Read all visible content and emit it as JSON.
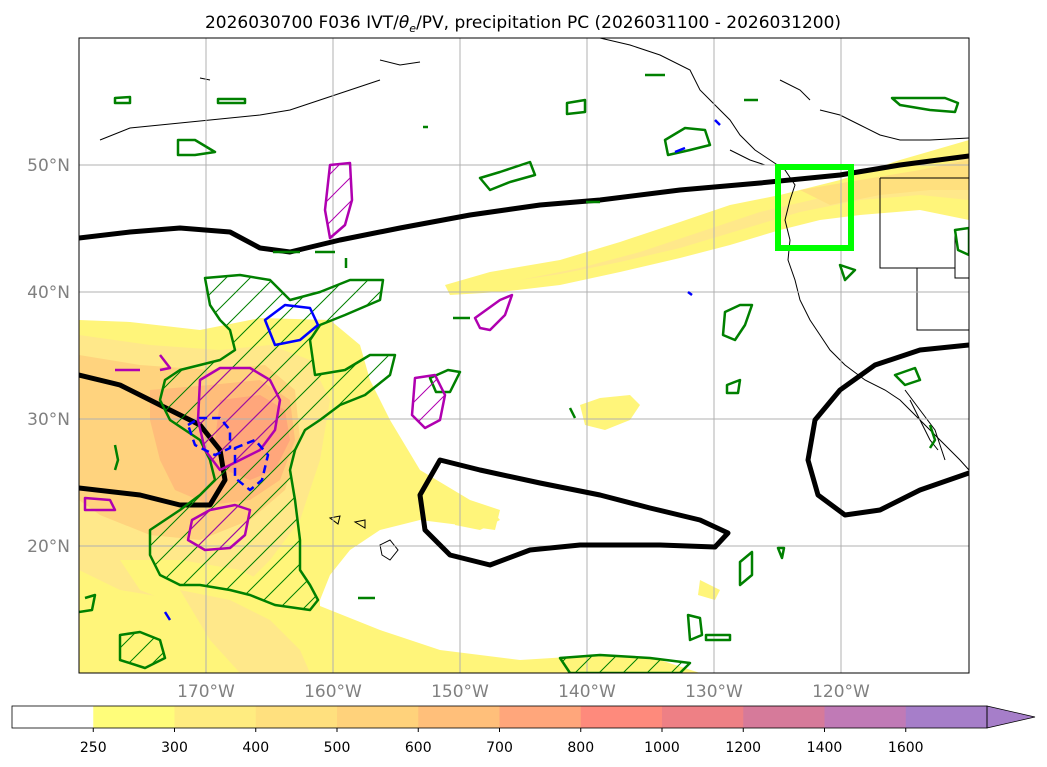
{
  "title": {
    "prefix": "2026030700 F036 IVT/",
    "theta": "θ",
    "theta_sub": "e",
    "suffix": "/PV, precipitation PC (2026031100 - 2026031200)"
  },
  "map": {
    "projection": "PlateCarree",
    "lon_range": [
      -180,
      -110
    ],
    "lat_range": [
      10,
      60
    ],
    "gridlines": true,
    "lat_labels": [
      "50°N",
      "40°N",
      "30°N",
      "20°N"
    ],
    "lon_labels": [
      "170°W",
      "160°W",
      "150°W",
      "140°W",
      "130°W",
      "120°W"
    ],
    "target_box_color": "#00ff00",
    "target_box": {
      "lon_range": [
        -125.2,
        -119.3
      ],
      "lat_range": [
        43.5,
        49.8
      ]
    }
  },
  "colorbar": {
    "extend": "max",
    "levels": [
      250,
      300,
      400,
      500,
      600,
      700,
      800,
      1000,
      1200,
      1400,
      1600
    ],
    "level_labels": [
      "250",
      "300",
      "400",
      "500",
      "600",
      "700",
      "800",
      "1000",
      "1200",
      "1400",
      "1600"
    ],
    "colors": [
      "#ffffff",
      "#fffd7a",
      "#ffec80",
      "#ffe07e",
      "#ffd27b",
      "#ffbf7a",
      "#ffa67b",
      "#fe8a7c",
      "#ee8085",
      "#d67a9a",
      "#c07ab6",
      "#a67ec9"
    ]
  },
  "legend_colors": {
    "ivt_fill": "#ffe27d",
    "theta_e_contour": "#000000",
    "precip_pc_contour": "#008000",
    "pv_positive_contour": "#b000b0",
    "pv_negative_contour": "#0000ff"
  }
}
